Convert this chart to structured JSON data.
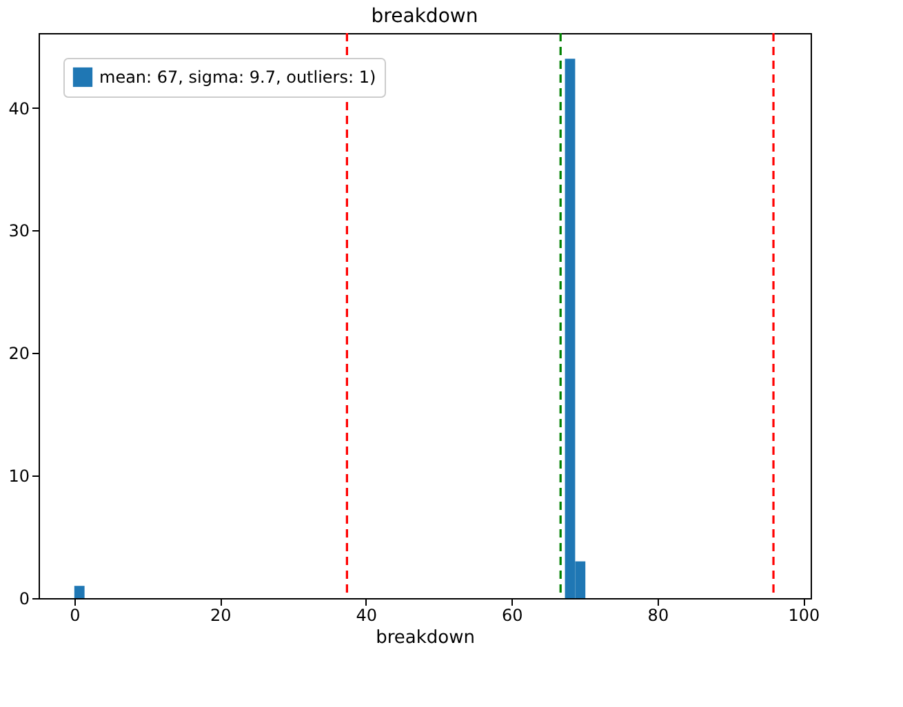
{
  "chart_data": {
    "type": "histogram",
    "title": "breakdown",
    "xlabel": "breakdown",
    "bins": [
      0,
      1.4,
      2.8,
      4.21,
      5.61,
      7.01,
      8.41,
      9.81,
      11.22,
      12.62,
      14.02,
      15.42,
      16.82,
      18.23,
      19.63,
      21.03,
      22.43,
      23.83,
      25.24,
      26.64,
      28.04,
      29.44,
      30.84,
      32.25,
      33.65,
      35.05,
      36.45,
      37.85,
      39.26,
      40.66,
      42.06,
      43.46,
      44.86,
      46.27,
      47.67,
      49.07,
      50.47,
      51.87,
      53.28,
      54.68,
      56.08,
      57.48,
      58.88,
      60.29,
      61.69,
      63.09,
      64.49,
      65.89,
      67.3,
      68.7,
      70.1
    ],
    "series": [
      {
        "name": "mean: 67, sigma: 9.7, outliers: 1)",
        "color": "#1f77b4",
        "values": [
          1,
          0,
          0,
          0,
          0,
          0,
          0,
          0,
          0,
          0,
          0,
          0,
          0,
          0,
          0,
          0,
          0,
          0,
          0,
          0,
          0,
          0,
          0,
          0,
          0,
          0,
          0,
          0,
          0,
          0,
          0,
          0,
          0,
          0,
          0,
          0,
          0,
          0,
          0,
          0,
          0,
          0,
          0,
          0,
          0,
          0,
          0,
          0,
          44,
          3
        ]
      }
    ],
    "xlim": [
      -4.9,
      101.0
    ],
    "ylim": [
      0,
      46.1
    ],
    "xticks": [
      0,
      20,
      40,
      60,
      80,
      100
    ],
    "yticks": [
      0,
      10,
      20,
      30,
      40
    ],
    "ref_lines": [
      {
        "axis": "x",
        "value": 37.4,
        "color": "#ff0000",
        "line_style": "dashed"
      },
      {
        "axis": "x",
        "value": 95.9,
        "color": "#ff0000",
        "line_style": "dashed"
      },
      {
        "axis": "x",
        "value": 66.7,
        "color": "#008000",
        "line_style": "dashed"
      }
    ],
    "legend": "top left",
    "grid": false
  }
}
